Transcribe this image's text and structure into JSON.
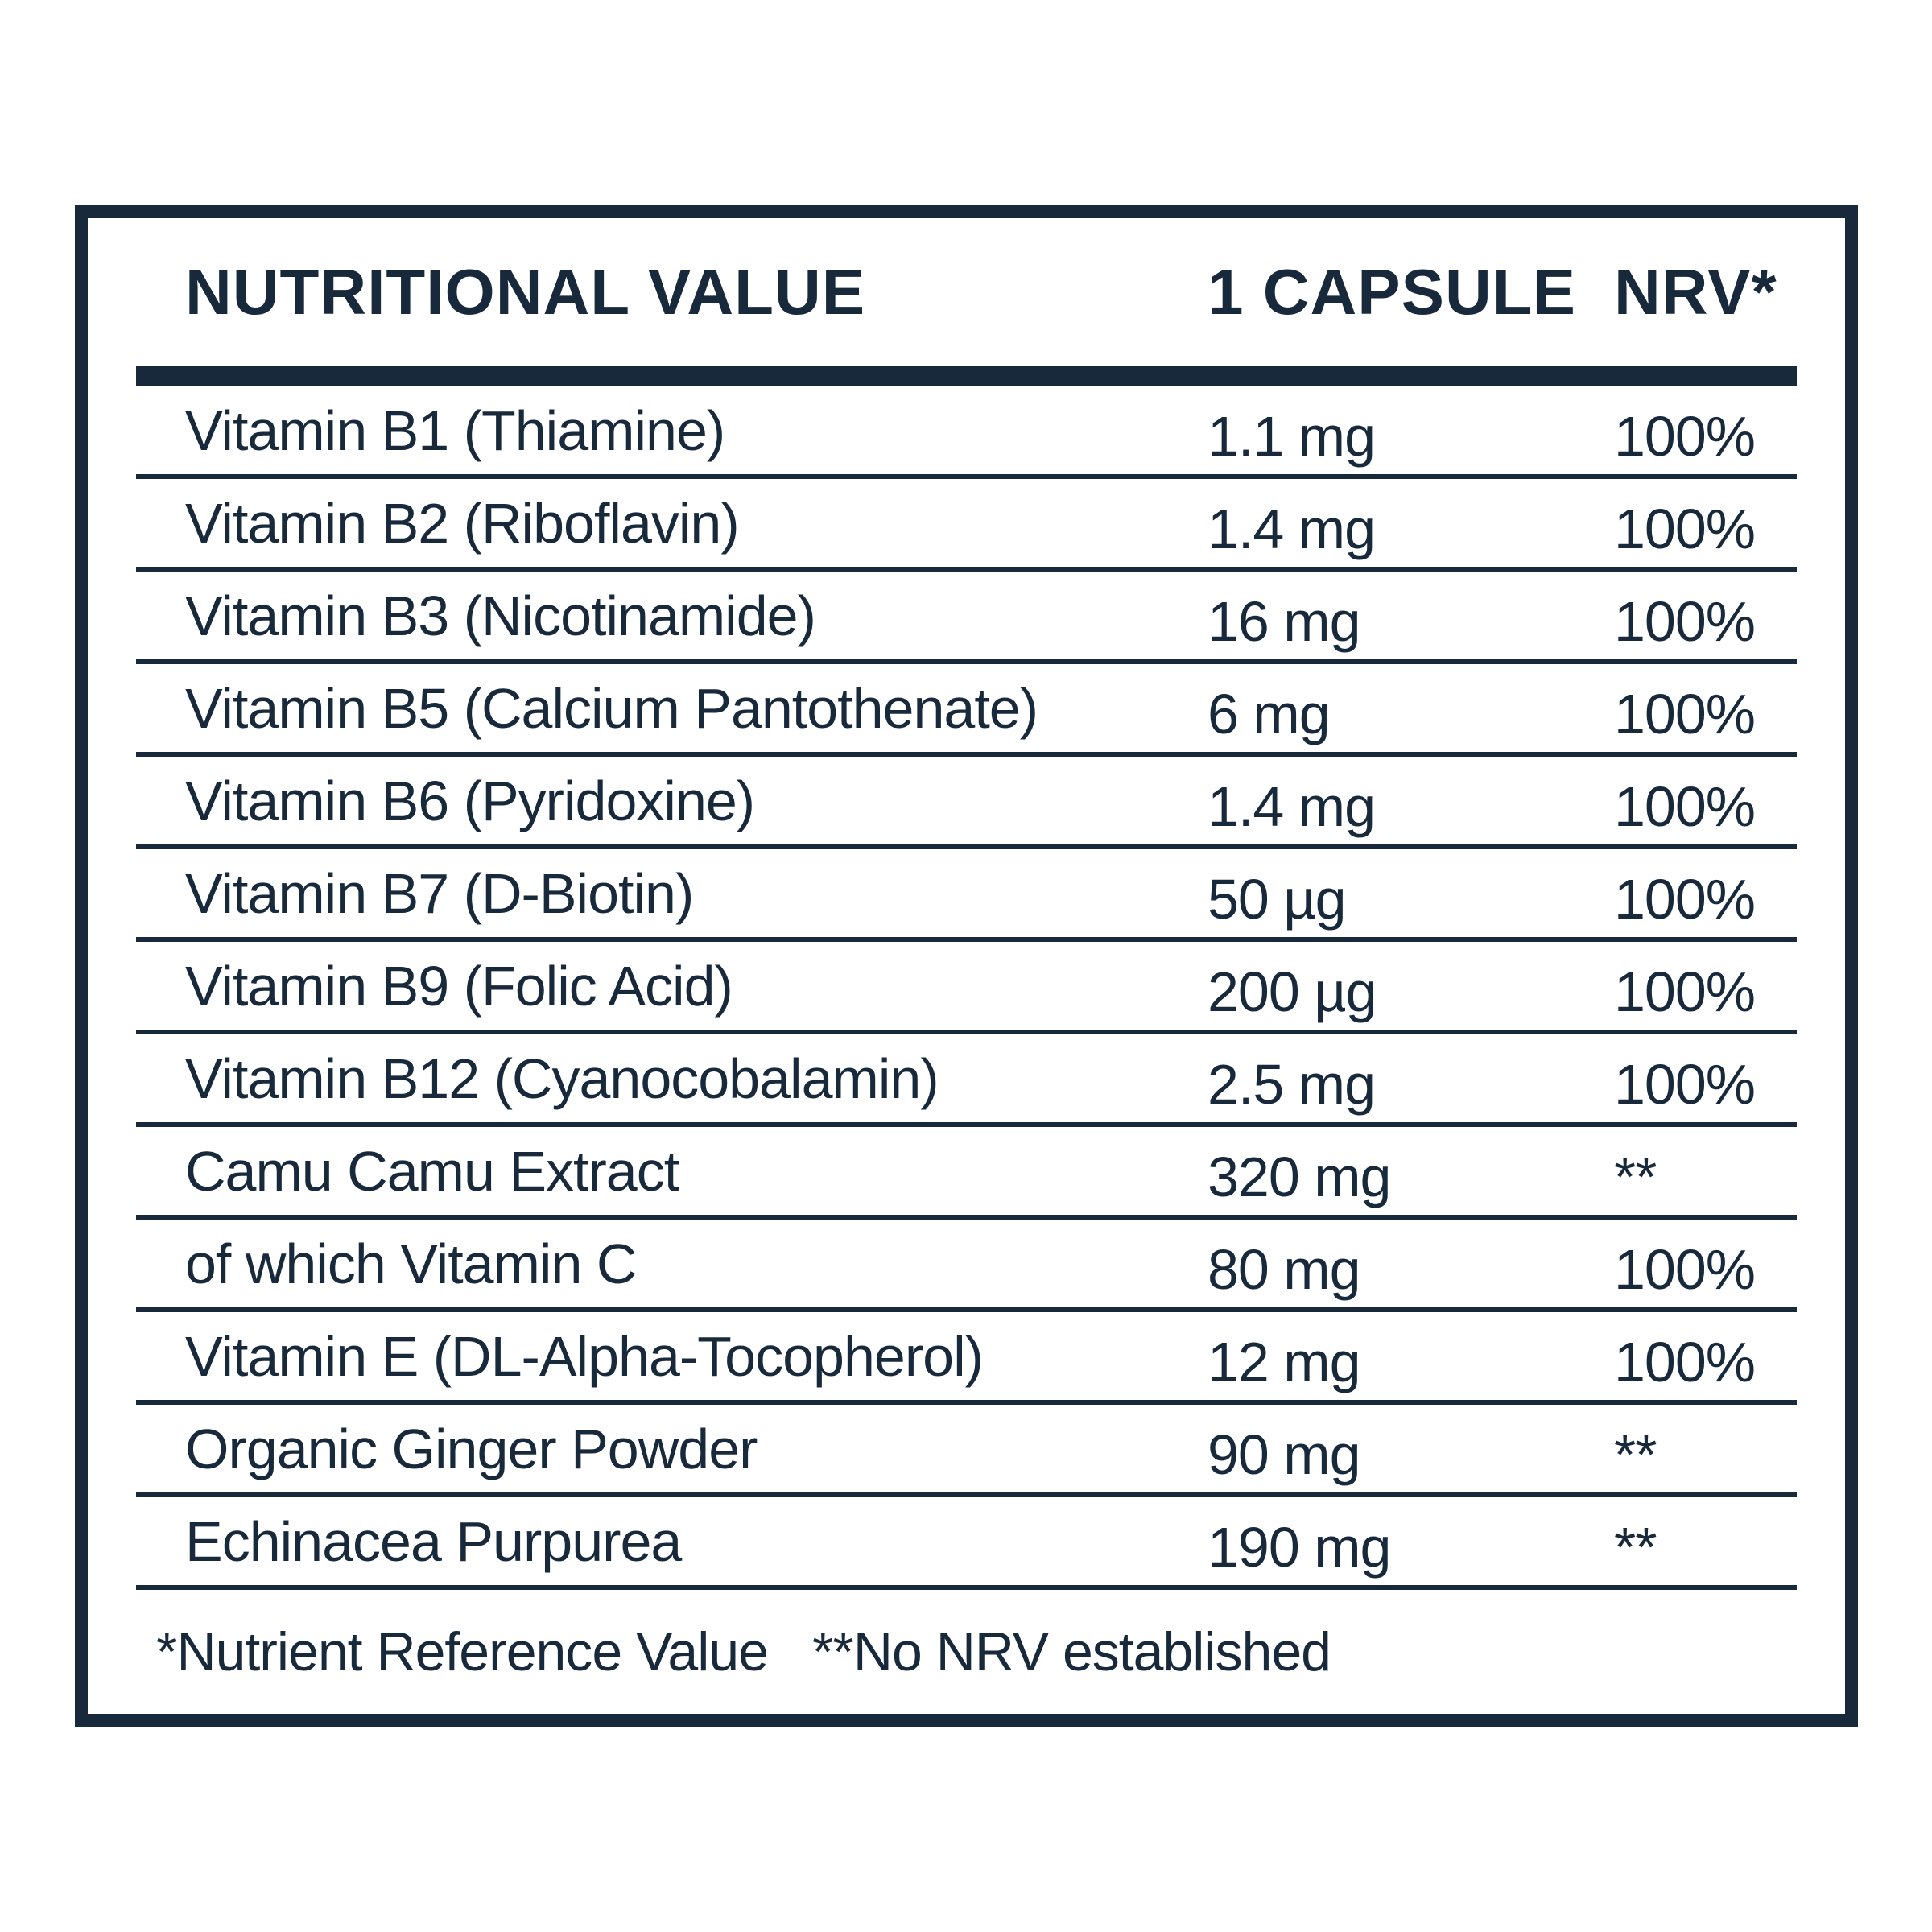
{
  "colors": {
    "ink": "#17293A",
    "background": "#FFFFFF"
  },
  "table": {
    "header": {
      "name": "NUTRITIONAL VALUE",
      "amount": "1 CAPSULE",
      "nrv": "NRV*"
    },
    "rows": [
      {
        "name": "Vitamin B1 (Thiamine)",
        "amount": "1.1 mg",
        "nrv": "100%"
      },
      {
        "name": "Vitamin B2 (Riboflavin)",
        "amount": "1.4 mg",
        "nrv": "100%"
      },
      {
        "name": "Vitamin B3 (Nicotinamide)",
        "amount": "16 mg",
        "nrv": "100%"
      },
      {
        "name": "Vitamin B5 (Calcium Pantothenate)",
        "amount": "6 mg",
        "nrv": "100%"
      },
      {
        "name": "Vitamin B6 (Pyridoxine)",
        "amount": "1.4 mg",
        "nrv": "100%"
      },
      {
        "name": "Vitamin B7 (D-Biotin)",
        "amount": "50 µg",
        "nrv": "100%"
      },
      {
        "name": "Vitamin B9 (Folic Acid)",
        "amount": "200 µg",
        "nrv": "100%"
      },
      {
        "name": "Vitamin B12 (Cyanocobalamin)",
        "amount": "2.5 mg",
        "nrv": "100%"
      },
      {
        "name": "Camu Camu Extract",
        "amount": "320 mg",
        "nrv": "**"
      },
      {
        "name": "of which Vitamin C",
        "amount": "80 mg",
        "nrv": "100%"
      },
      {
        "name": "Vitamin E (DL-Alpha-Tocopherol)",
        "amount": "12 mg",
        "nrv": "100%"
      },
      {
        "name": "Organic Ginger Powder",
        "amount": "90 mg",
        "nrv": "**"
      },
      {
        "name": "Echinacea Purpurea",
        "amount": "190 mg",
        "nrv": "**"
      }
    ],
    "footnote": {
      "nrv_note": "*Nutrient Reference Value",
      "no_nrv_note": "**No NRV established"
    }
  }
}
